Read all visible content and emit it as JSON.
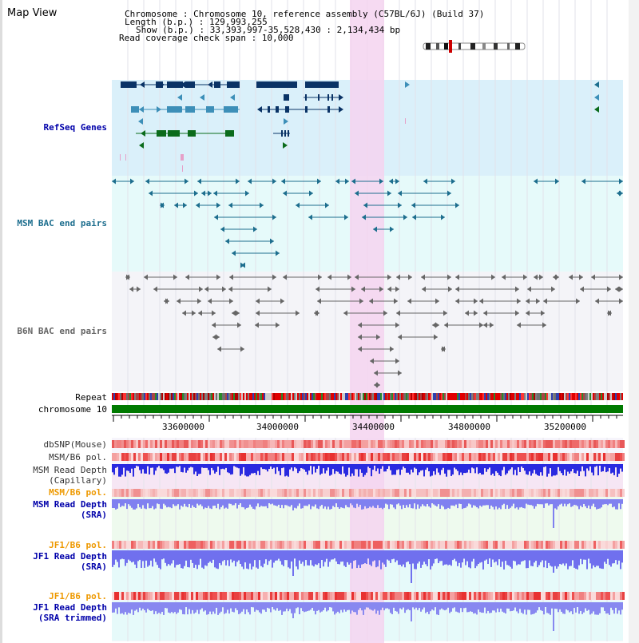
{
  "title": "Map View",
  "info": {
    "chromosome_label": "Chromosome     : Chromosome 10, reference assembly (C57BL/6J) (Build 37)",
    "length_label": "Length (b.p.) : 129,993,255",
    "show_label": "Show (b.p.) : 33,393,997-35,528,430 : 2,134,434 bp",
    "coverage_label": "Read coverage check span : 10,000"
  },
  "tracks": {
    "refseq": "RefSeq Genes",
    "msm_bac": "MSM BAC end pairs",
    "b6n_bac": "B6N BAC end pairs",
    "repeat": "Repeat",
    "chromosome": "chromosome 10",
    "dbsnp": "dbSNP(Mouse)",
    "msm_b6_pol_1": "MSM/B6 pol.",
    "msm_depth_cap_1": "MSM Read Depth",
    "msm_depth_cap_2": "(Capillary)",
    "msm_b6_pol_2": "MSM/B6 pol.",
    "msm_depth_sra_1": "MSM Read Depth",
    "msm_depth_sra_2": "(SRA)",
    "jf1_b6_pol_1": "JF1/B6 pol.",
    "jf1_depth_sra_1": "JF1 Read Depth",
    "jf1_depth_sra_2": "(SRA)",
    "jf1_b6_pol_2": "JF1/B6 pol.",
    "jf1_depth_trim_1": "JF1 Read Depth",
    "jf1_depth_trim_2": "(SRA trimmed)"
  },
  "axis": {
    "ticks": [
      "33600000",
      "34000000",
      "34400000",
      "34800000",
      "35200000"
    ]
  },
  "colors": {
    "refseq_bg": "#daf0fa",
    "msm_bac_bg": "#e6fafa",
    "b6n_bac_bg": "#f4f4f8",
    "highlight": "#f5d3f0",
    "refseq_dark": "#0a3366",
    "refseq_mid": "#3d8fb8",
    "refseq_green": "#0b6b1b",
    "msm_line": "#1d6e8e",
    "b6n_line": "#666666",
    "chrom_bar": "#007a00",
    "depth_blue": "#3333dd",
    "label_blue": "#0000aa",
    "label_orange": "#ee9900"
  }
}
